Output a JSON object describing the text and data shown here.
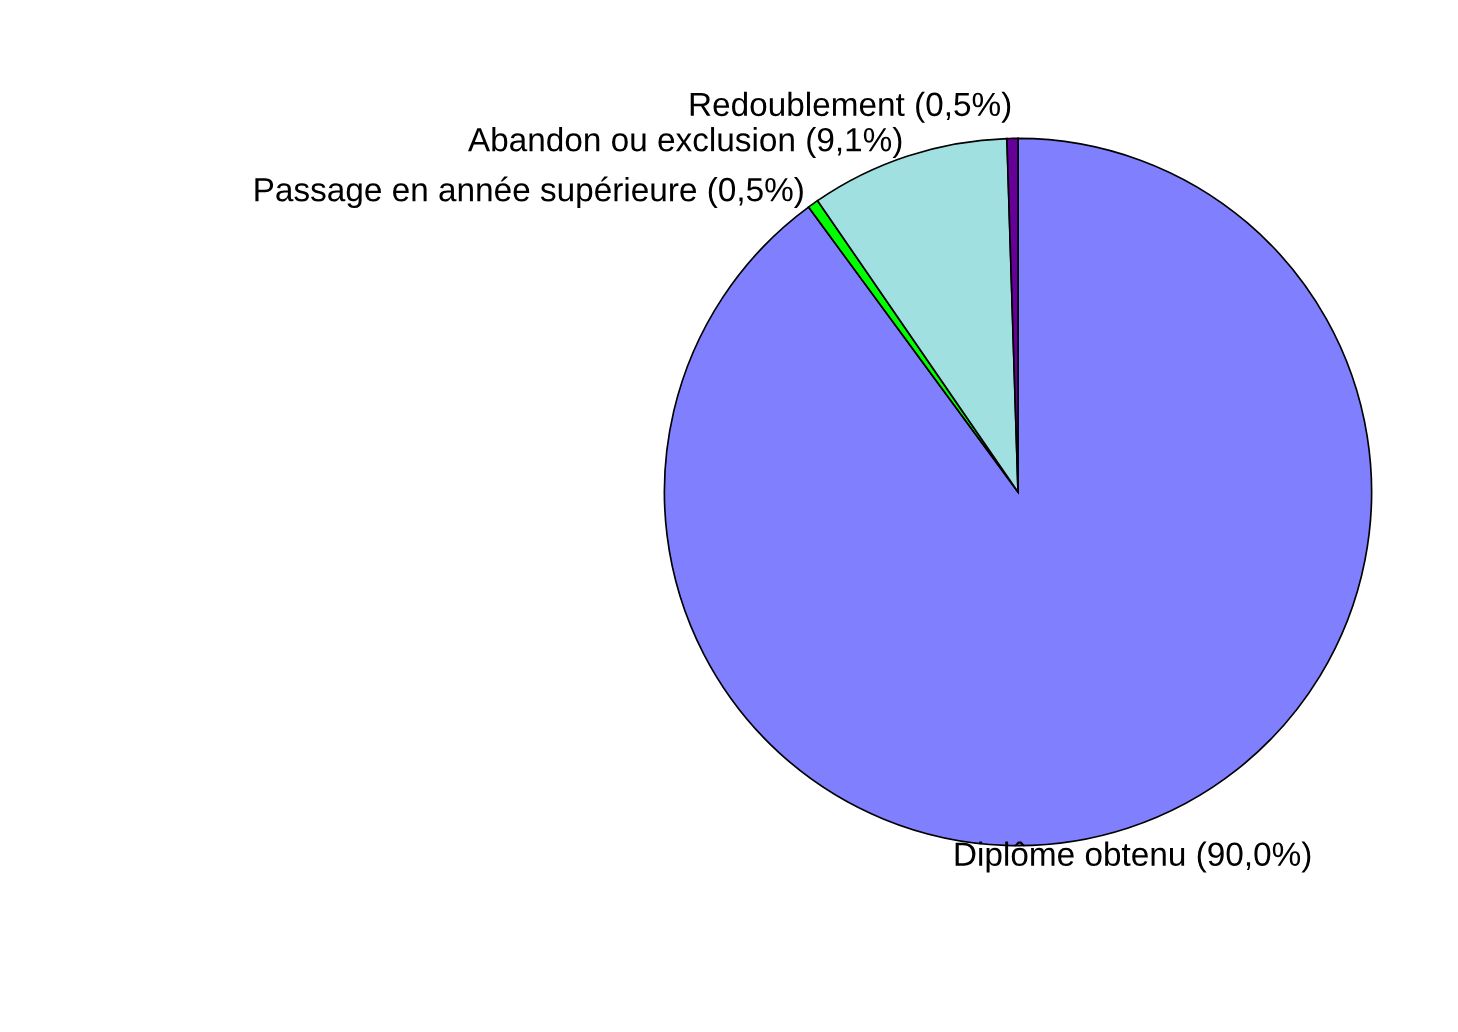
{
  "chart_data": {
    "type": "pie",
    "categories": [
      "Diplôme obtenu",
      "Passage en année supérieure",
      "Abandon ou exclusion",
      "Redoublement"
    ],
    "values": [
      90.0,
      0.5,
      9.1,
      0.5
    ],
    "value_labels": [
      "(90,0%)",
      "(0,5%)",
      "(9,1%)",
      "(0,5%)"
    ],
    "colors": [
      "#8080ff",
      "#00ff00",
      "#a0e0e0",
      "#660099"
    ],
    "legend": false
  }
}
